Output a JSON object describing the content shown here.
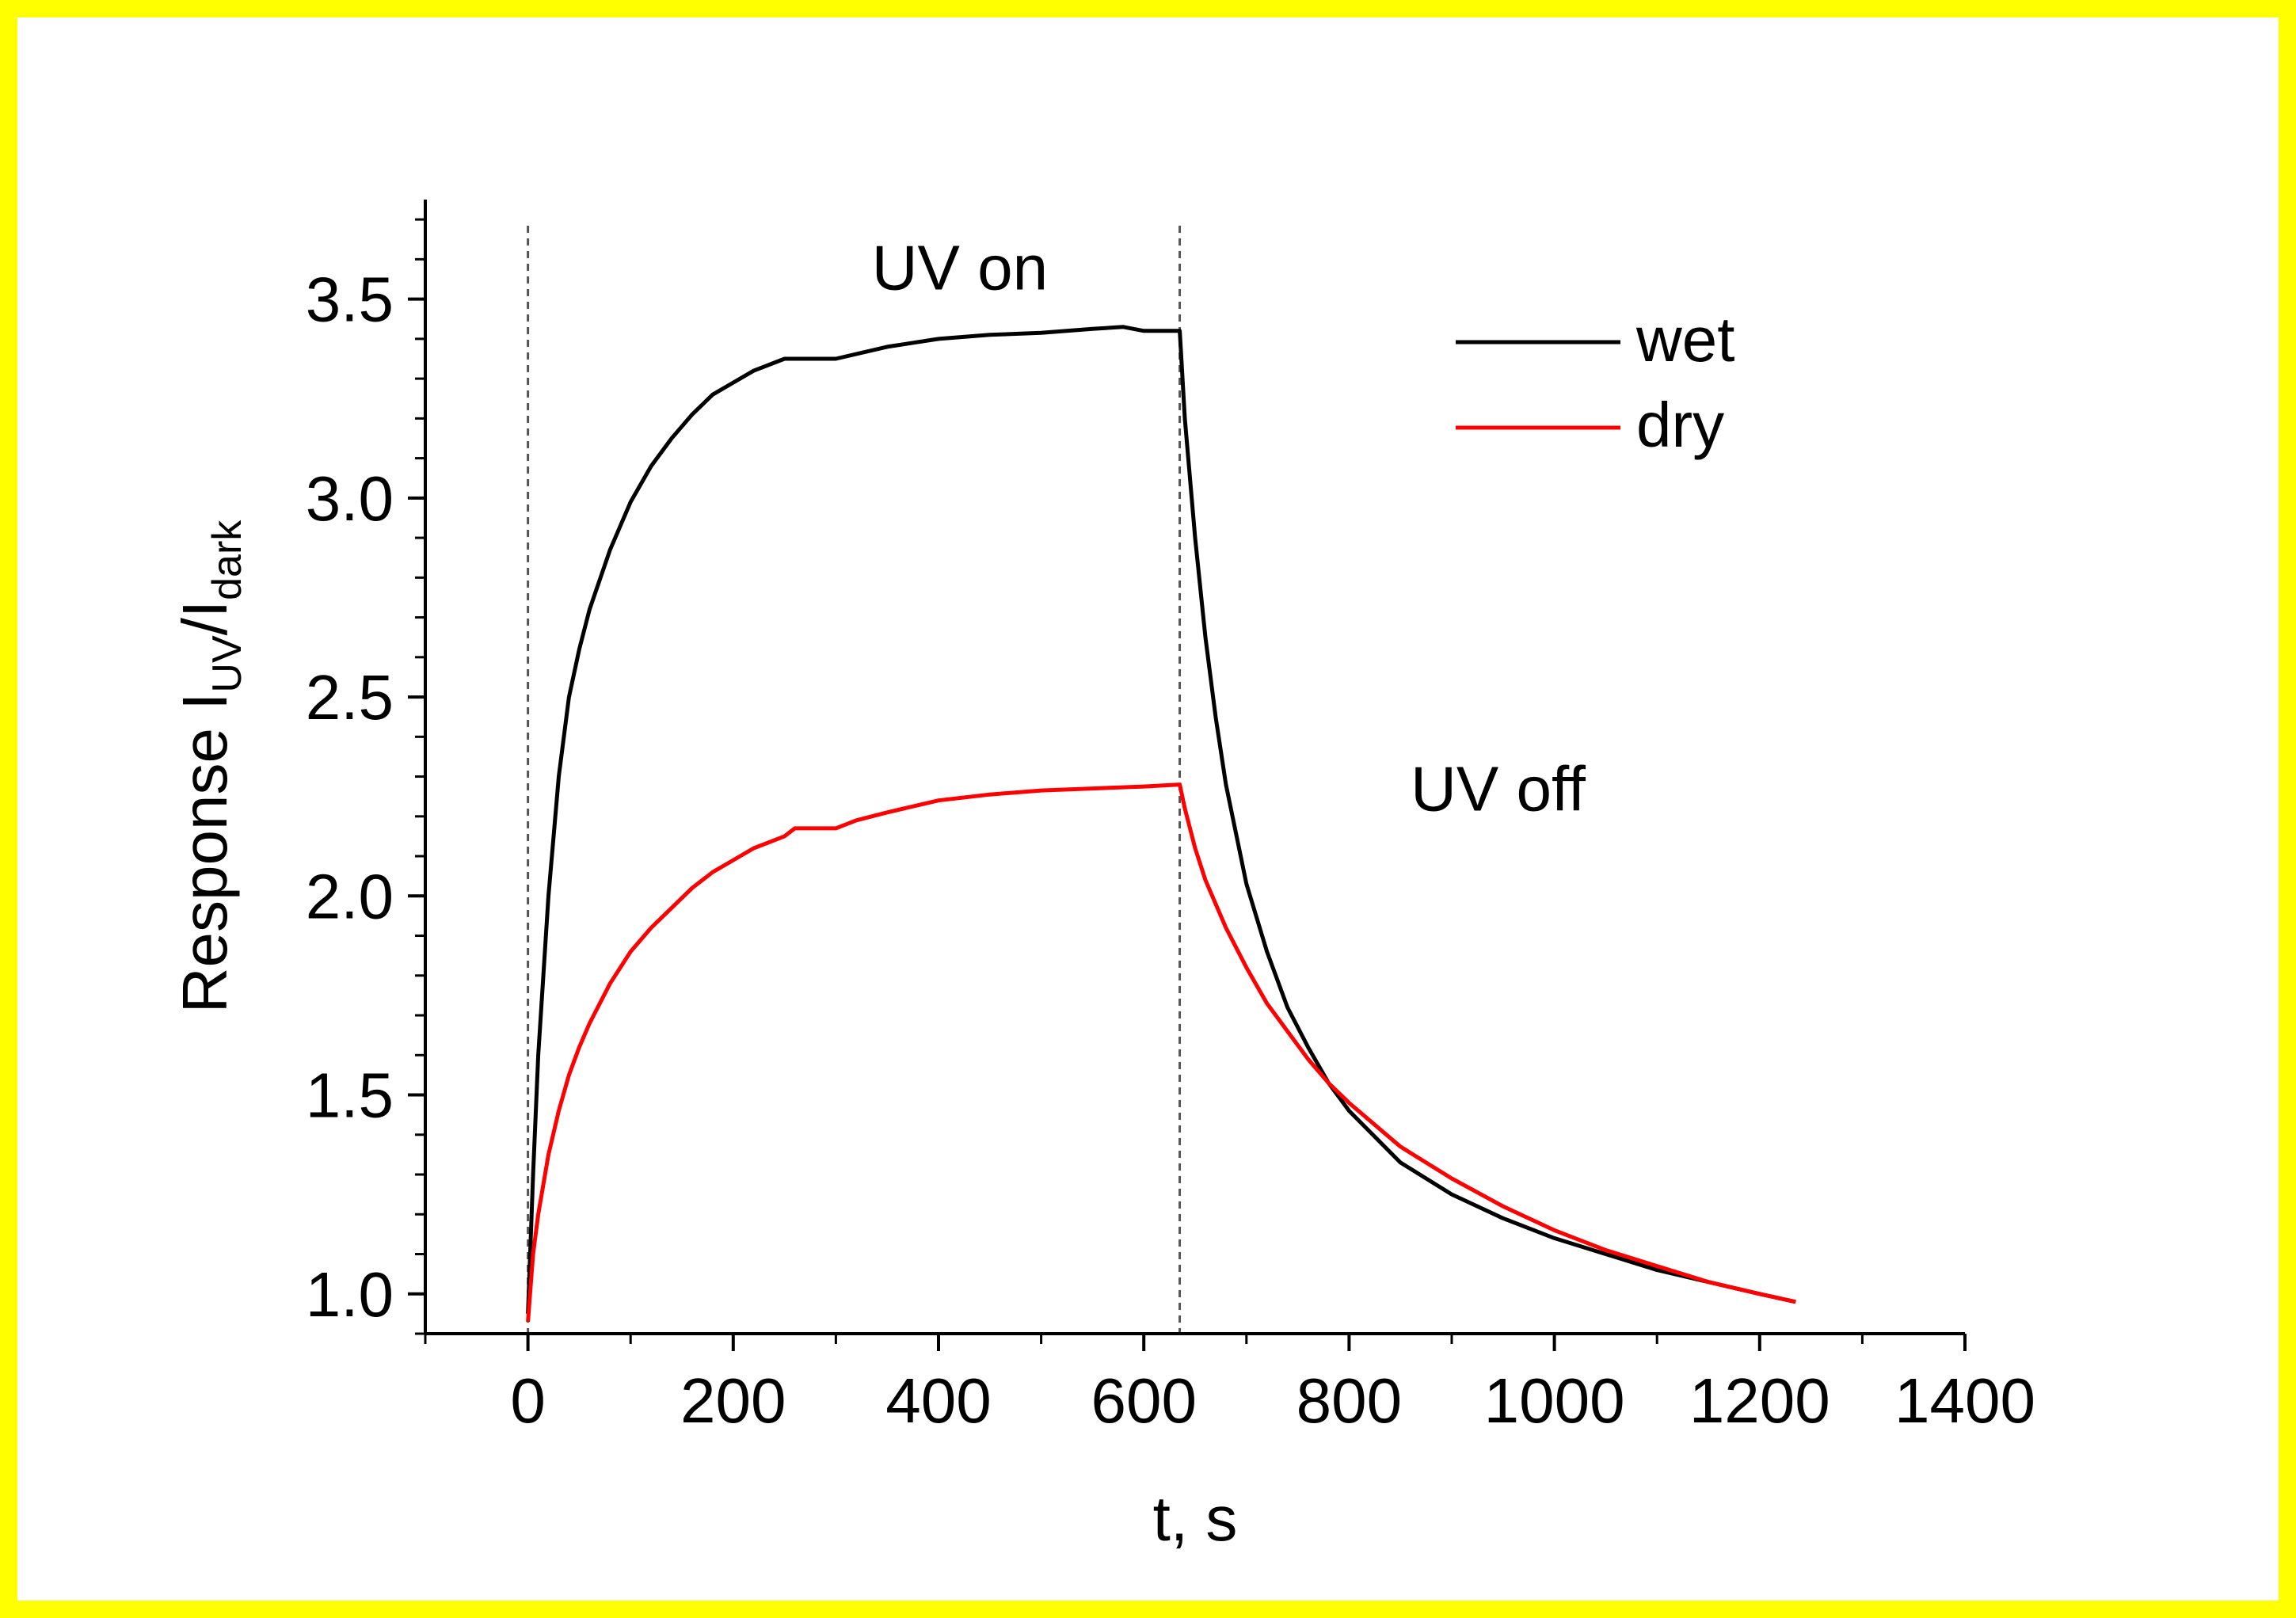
{
  "frame": {
    "border_color": "#ffff00"
  },
  "chart_data": {
    "type": "line",
    "title": "",
    "xlabel": "t, s",
    "ylabel": {
      "main": "Response I",
      "sub1": "UV",
      "sep": "/I",
      "sub2": "dark"
    },
    "xlim": [
      -100,
      1400
    ],
    "ylim": [
      0.9,
      3.75
    ],
    "x_ticks": [
      0,
      200,
      400,
      600,
      800,
      1000,
      1200,
      1400
    ],
    "x_tick_labels": [
      "0",
      "200",
      "400",
      "600",
      "800",
      "1000",
      "1200",
      "1400"
    ],
    "y_ticks": [
      1.0,
      1.5,
      2.0,
      2.5,
      3.0,
      3.5
    ],
    "y_tick_labels": [
      "1.0",
      "1.5",
      "2.0",
      "2.5",
      "3.0",
      "3.5"
    ],
    "grid": false,
    "legend_position": "top-right",
    "annotations": [
      {
        "text": "UV on",
        "x": 335,
        "y": 3.58
      },
      {
        "text": "UV off",
        "x": 860,
        "y": 2.27
      }
    ],
    "vlines": [
      0,
      635
    ],
    "series": [
      {
        "name": "wet",
        "color": "#000000",
        "x": [
          0,
          5,
          10,
          20,
          30,
          40,
          50,
          60,
          80,
          100,
          120,
          140,
          160,
          180,
          200,
          220,
          250,
          300,
          350,
          400,
          450,
          500,
          550,
          580,
          600,
          620,
          635,
          640,
          650,
          660,
          670,
          680,
          700,
          720,
          740,
          760,
          780,
          800,
          850,
          900,
          950,
          1000,
          1050,
          1100,
          1150,
          1200,
          1235
        ],
        "values": [
          0.95,
          1.3,
          1.6,
          2.0,
          2.3,
          2.5,
          2.62,
          2.72,
          2.87,
          2.99,
          3.08,
          3.15,
          3.21,
          3.26,
          3.29,
          3.32,
          3.35,
          3.35,
          3.38,
          3.4,
          3.41,
          3.415,
          3.425,
          3.43,
          3.42,
          3.42,
          3.42,
          3.2,
          2.9,
          2.65,
          2.45,
          2.28,
          2.03,
          1.86,
          1.72,
          1.62,
          1.53,
          1.46,
          1.33,
          1.25,
          1.19,
          1.14,
          1.1,
          1.06,
          1.03,
          1.0,
          0.98
        ]
      },
      {
        "name": "dry",
        "color": "#ff0000",
        "x": [
          0,
          5,
          10,
          20,
          30,
          40,
          50,
          60,
          80,
          100,
          120,
          140,
          160,
          180,
          200,
          220,
          250,
          260,
          300,
          320,
          350,
          400,
          450,
          500,
          550,
          600,
          635,
          640,
          650,
          660,
          680,
          700,
          720,
          740,
          760,
          780,
          800,
          850,
          900,
          950,
          1000,
          1050,
          1100,
          1150,
          1200,
          1235
        ],
        "values": [
          0.93,
          1.1,
          1.2,
          1.35,
          1.46,
          1.55,
          1.62,
          1.68,
          1.78,
          1.86,
          1.92,
          1.97,
          2.02,
          2.06,
          2.09,
          2.12,
          2.15,
          2.17,
          2.17,
          2.19,
          2.21,
          2.24,
          2.255,
          2.265,
          2.27,
          2.275,
          2.28,
          2.22,
          2.12,
          2.04,
          1.92,
          1.82,
          1.73,
          1.66,
          1.59,
          1.53,
          1.48,
          1.37,
          1.29,
          1.22,
          1.16,
          1.11,
          1.07,
          1.03,
          1.0,
          0.98
        ]
      }
    ]
  }
}
